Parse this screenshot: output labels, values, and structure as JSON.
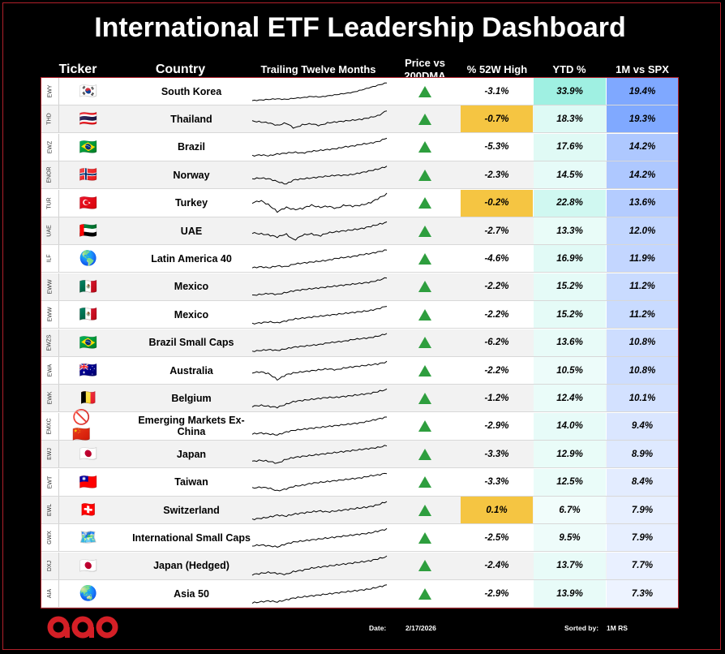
{
  "title": "International ETF Leadership Dashboard",
  "headers": {
    "ticker": "Ticker",
    "country": "Country",
    "ttm": "Trailing Twelve Months",
    "price_l1": "Price vs",
    "price_l2": "200DMA",
    "high52": "% 52W High",
    "ytd": "YTD %",
    "spx": "1M vs SPX"
  },
  "colors": {
    "arrow_up": "#2e9e3e",
    "highlight_52w": "#f5c542",
    "ytd_max": "#9ff0e2",
    "spx_max": "#7fa8ff",
    "border": "#b0202a"
  },
  "rows": [
    {
      "ticker": "EWY",
      "flag": "🇰🇷",
      "country": "South Korea",
      "above_200dma": true,
      "pct_52w": "-3.1%",
      "ytd": "33.9%",
      "spx": "19.4%",
      "ytd_v": 33.9,
      "spx_v": 19.4,
      "high52_highlight": false,
      "trend": [
        0,
        1,
        2,
        3,
        2,
        4,
        5,
        7,
        6,
        8,
        10,
        12,
        14,
        18,
        22,
        26,
        30
      ]
    },
    {
      "ticker": "THD",
      "flag": "🇹🇭",
      "country": "Thailand",
      "above_200dma": true,
      "pct_52w": "-0.7%",
      "ytd": "18.3%",
      "spx": "19.3%",
      "ytd_v": 18.3,
      "spx_v": 19.3,
      "high52_highlight": true,
      "trend": [
        10,
        9,
        8,
        5,
        8,
        2,
        6,
        7,
        5,
        8,
        9,
        10,
        11,
        12,
        14,
        16,
        22
      ]
    },
    {
      "ticker": "EWZ",
      "flag": "🇧🇷",
      "country": "Brazil",
      "above_200dma": true,
      "pct_52w": "-5.3%",
      "ytd": "17.6%",
      "spx": "14.2%",
      "ytd_v": 17.6,
      "spx_v": 14.2,
      "high52_highlight": false,
      "trend": [
        2,
        3,
        2,
        4,
        5,
        6,
        5,
        7,
        8,
        9,
        10,
        12,
        13,
        15,
        16,
        18,
        22
      ]
    },
    {
      "ticker": "ENOR",
      "flag": "🇳🇴",
      "country": "Norway",
      "above_200dma": true,
      "pct_52w": "-2.3%",
      "ytd": "14.5%",
      "spx": "14.2%",
      "ytd_v": 14.5,
      "spx_v": 14.2,
      "high52_highlight": false,
      "trend": [
        8,
        9,
        8,
        5,
        2,
        7,
        8,
        9,
        10,
        11,
        12,
        12,
        13,
        15,
        17,
        19,
        22
      ]
    },
    {
      "ticker": "TUR",
      "flag": "🇹🇷",
      "country": "Turkey",
      "above_200dma": true,
      "pct_52w": "-0.2%",
      "ytd": "22.8%",
      "spx": "13.6%",
      "ytd_v": 22.8,
      "spx_v": 13.6,
      "high52_highlight": true,
      "trend": [
        14,
        16,
        12,
        6,
        10,
        8,
        9,
        12,
        10,
        11,
        9,
        12,
        11,
        12,
        14,
        18,
        22
      ]
    },
    {
      "ticker": "UAE",
      "flag": "🇦🇪",
      "country": "UAE",
      "above_200dma": true,
      "pct_52w": "-2.7%",
      "ytd": "13.3%",
      "spx": "12.0%",
      "ytd_v": 13.3,
      "spx_v": 12.0,
      "high52_highlight": false,
      "trend": [
        10,
        9,
        8,
        6,
        9,
        3,
        8,
        9,
        7,
        10,
        11,
        12,
        13,
        14,
        16,
        18,
        20
      ]
    },
    {
      "ticker": "ILF",
      "flag": "🌎",
      "country": "Latin America 40",
      "above_200dma": true,
      "pct_52w": "-4.6%",
      "ytd": "16.9%",
      "spx": "11.9%",
      "ytd_v": 16.9,
      "spx_v": 11.9,
      "high52_highlight": false,
      "trend": [
        2,
        3,
        2,
        4,
        3,
        6,
        7,
        8,
        9,
        10,
        12,
        13,
        14,
        16,
        17,
        19,
        21
      ]
    },
    {
      "ticker": "EWW",
      "flag": "🇲🇽",
      "country": "Mexico",
      "above_200dma": true,
      "pct_52w": "-2.2%",
      "ytd": "15.2%",
      "spx": "11.2%",
      "ytd_v": 15.2,
      "spx_v": 11.2,
      "high52_highlight": false,
      "trend": [
        2,
        3,
        4,
        3,
        5,
        7,
        8,
        9,
        10,
        11,
        12,
        13,
        14,
        15,
        16,
        18,
        21
      ]
    },
    {
      "ticker": "EWW",
      "flag": "🇲🇽",
      "country": "Mexico",
      "above_200dma": true,
      "pct_52w": "-2.2%",
      "ytd": "15.2%",
      "spx": "11.2%",
      "ytd_v": 15.2,
      "spx_v": 11.2,
      "high52_highlight": false,
      "trend": [
        2,
        3,
        4,
        3,
        5,
        7,
        8,
        9,
        10,
        11,
        12,
        13,
        14,
        15,
        16,
        18,
        21
      ]
    },
    {
      "ticker": "EWZS",
      "flag": "🇧🇷",
      "country": "Brazil Small Caps",
      "above_200dma": true,
      "pct_52w": "-6.2%",
      "ytd": "13.6%",
      "spx": "10.8%",
      "ytd_v": 13.6,
      "spx_v": 10.8,
      "high52_highlight": false,
      "trend": [
        1,
        2,
        3,
        2,
        4,
        6,
        7,
        8,
        9,
        11,
        12,
        13,
        15,
        16,
        17,
        19,
        22
      ]
    },
    {
      "ticker": "EWA",
      "flag": "🇦🇺",
      "country": "Australia",
      "above_200dma": true,
      "pct_52w": "-2.2%",
      "ytd": "10.5%",
      "spx": "10.8%",
      "ytd_v": 10.5,
      "spx_v": 10.8,
      "high52_highlight": false,
      "trend": [
        9,
        10,
        8,
        2,
        7,
        9,
        10,
        11,
        12,
        13,
        12,
        14,
        15,
        16,
        17,
        18,
        20
      ]
    },
    {
      "ticker": "EWK",
      "flag": "🇧🇪",
      "country": "Belgium",
      "above_200dma": true,
      "pct_52w": "-1.2%",
      "ytd": "12.4%",
      "spx": "10.1%",
      "ytd_v": 12.4,
      "spx_v": 10.1,
      "high52_highlight": false,
      "trend": [
        3,
        4,
        3,
        2,
        5,
        8,
        9,
        10,
        11,
        12,
        12,
        13,
        14,
        15,
        16,
        18,
        20
      ]
    },
    {
      "ticker": "EMXC",
      "flag": "🚫🇨🇳",
      "country": "Emerging Markets Ex-China",
      "above_200dma": true,
      "pct_52w": "-2.9%",
      "ytd": "14.0%",
      "spx": "9.4%",
      "ytd_v": 14.0,
      "spx_v": 9.4,
      "high52_highlight": false,
      "trend": [
        3,
        4,
        3,
        2,
        5,
        7,
        8,
        9,
        10,
        11,
        12,
        13,
        14,
        15,
        17,
        19,
        21
      ]
    },
    {
      "ticker": "EWJ",
      "flag": "🇯🇵",
      "country": "Japan",
      "above_200dma": true,
      "pct_52w": "-3.3%",
      "ytd": "12.9%",
      "spx": "8.9%",
      "ytd_v": 12.9,
      "spx_v": 8.9,
      "high52_highlight": false,
      "trend": [
        4,
        5,
        4,
        2,
        6,
        8,
        9,
        10,
        11,
        12,
        13,
        14,
        15,
        16,
        17,
        18,
        20
      ]
    },
    {
      "ticker": "EWT",
      "flag": "🇹🇼",
      "country": "Taiwan",
      "above_200dma": true,
      "pct_52w": "-3.3%",
      "ytd": "12.5%",
      "spx": "8.4%",
      "ytd_v": 12.5,
      "spx_v": 8.4,
      "high52_highlight": false,
      "trend": [
        5,
        6,
        5,
        2,
        4,
        7,
        8,
        10,
        11,
        12,
        13,
        14,
        15,
        16,
        18,
        19,
        21
      ]
    },
    {
      "ticker": "EWL",
      "flag": "🇨🇭",
      "country": "Switzerland",
      "above_200dma": true,
      "pct_52w": "0.1%",
      "ytd": "6.7%",
      "spx": "7.9%",
      "ytd_v": 6.7,
      "spx_v": 7.9,
      "high52_highlight": true,
      "trend": [
        4,
        5,
        6,
        8,
        7,
        9,
        10,
        11,
        12,
        11,
        12,
        13,
        14,
        15,
        16,
        18,
        21
      ]
    },
    {
      "ticker": "GWX",
      "flag": "🗺️",
      "country": "International Small Caps",
      "above_200dma": true,
      "pct_52w": "-2.5%",
      "ytd": "9.5%",
      "spx": "7.9%",
      "ytd_v": 9.5,
      "spx_v": 7.9,
      "high52_highlight": false,
      "trend": [
        3,
        4,
        3,
        2,
        5,
        7,
        8,
        9,
        10,
        11,
        12,
        13,
        14,
        15,
        16,
        18,
        20
      ]
    },
    {
      "ticker": "DXJ",
      "flag": "🇯🇵",
      "country": "Japan (Hedged)",
      "above_200dma": true,
      "pct_52w": "-2.4%",
      "ytd": "13.7%",
      "spx": "7.7%",
      "ytd_v": 13.7,
      "spx_v": 7.7,
      "high52_highlight": false,
      "trend": [
        4,
        5,
        6,
        5,
        4,
        7,
        8,
        10,
        11,
        12,
        13,
        14,
        15,
        16,
        17,
        19,
        21
      ]
    },
    {
      "ticker": "AIA",
      "flag": "🌏",
      "country": "Asia 50",
      "above_200dma": true,
      "pct_52w": "-2.9%",
      "ytd": "13.9%",
      "spx": "7.3%",
      "ytd_v": 13.9,
      "spx_v": 7.3,
      "high52_highlight": false,
      "trend": [
        2,
        3,
        4,
        3,
        5,
        7,
        8,
        9,
        10,
        11,
        12,
        13,
        14,
        15,
        16,
        18,
        20
      ]
    }
  ],
  "footer": {
    "logo_text": "aao",
    "date_label": "Date:",
    "date_value": "2/17/2026",
    "sorted_label": "Sorted by:",
    "sorted_value": "1M RS"
  },
  "chart_data": {
    "type": "table",
    "title": "International ETF Leadership Dashboard",
    "columns": [
      "Ticker",
      "Country",
      "Trailing Twelve Months",
      "Price vs 200DMA",
      "% 52W High",
      "YTD %",
      "1M vs SPX"
    ],
    "sort": "1M vs SPX descending"
  }
}
